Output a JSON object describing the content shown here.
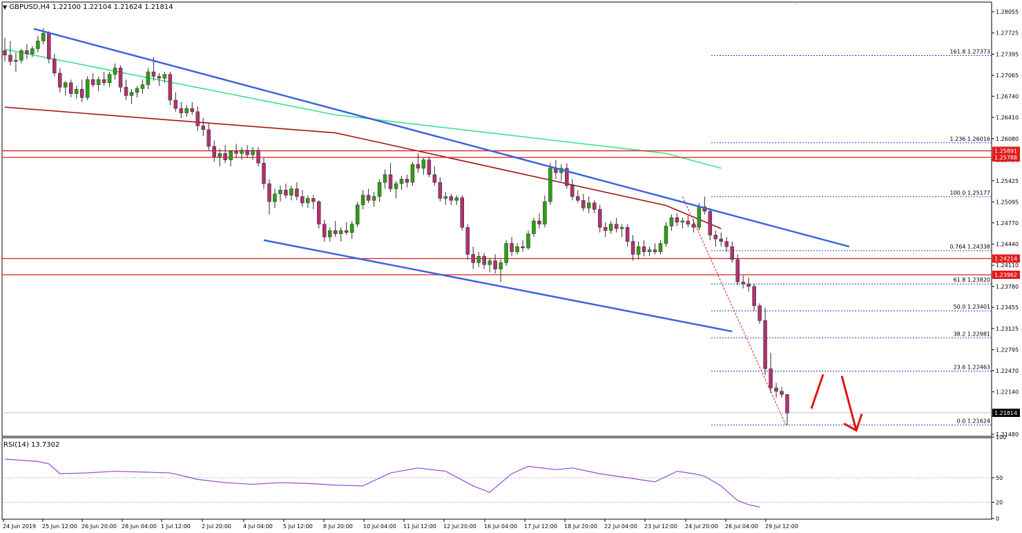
{
  "header": {
    "symbol": "GBPUSD,H4",
    "ohlc": "1.22100 1.22104 1.21624 1.21814"
  },
  "rsi": {
    "label": "RSI(14) 13.7302",
    "levels": [
      "100",
      "50",
      "20",
      "0"
    ]
  },
  "colors": {
    "bull": "#2f9e13",
    "bear": "#b0326f",
    "wick": "#2c2c2c",
    "ma_red": "#a31616",
    "ma_green": "#35e58e",
    "trendline": "#3c64dd",
    "hline": "#e21b1b",
    "fib": "#2244cc",
    "rsi": "#9646d8",
    "arrow": "#e01414",
    "label_box": "#e21b1b"
  },
  "chart_data": [
    {
      "type": "candlestick",
      "title": "GBPUSD,H4",
      "ylim": [
        1.2142,
        1.2816
      ],
      "y_ticks": [
        "1.28055",
        "1.27725",
        "1.27395",
        "1.27065",
        "1.26740",
        "1.26410",
        "1.26080",
        "1.25750",
        "1.25425",
        "1.25095",
        "1.24770",
        "1.24440",
        "1.24110",
        "1.23780",
        "1.23455",
        "1.23125",
        "1.22795",
        "1.22470",
        "1.22140",
        "1.21480"
      ],
      "x_ticks": [
        "24 Jun 2019",
        "25 Jun 12:00",
        "26 Jun 20:00",
        "28 Jun 04:00",
        "1 Jul 12:00",
        "2 Jul 20:00",
        "4 Jul 04:00",
        "5 Jul 12:00",
        "8 Jul 20:00",
        "10 Jul 04:00",
        "11 Jul 12:00",
        "12 Jul 20:00",
        "16 Jul 04:00",
        "17 Jul 12:00",
        "18 Jul 20:00",
        "22 Jul 04:00",
        "23 Jul 12:00",
        "24 Jul 20:00",
        "26 Jul 04:00",
        "29 Jul 12:00"
      ],
      "candles": [
        [
          1.2745,
          1.2765,
          1.2728,
          1.2738
        ],
        [
          1.2738,
          1.276,
          1.2722,
          1.2728
        ],
        [
          1.2728,
          1.2742,
          1.2712,
          1.273
        ],
        [
          1.273,
          1.2748,
          1.2725,
          1.2745
        ],
        [
          1.2745,
          1.2755,
          1.2732,
          1.274
        ],
        [
          1.274,
          1.2752,
          1.2735,
          1.2748
        ],
        [
          1.2748,
          1.2768,
          1.2742,
          1.276
        ],
        [
          1.276,
          1.278,
          1.2755,
          1.2772
        ],
        [
          1.2772,
          1.2775,
          1.2725,
          1.2732
        ],
        [
          1.2732,
          1.274,
          1.2705,
          1.271
        ],
        [
          1.271,
          1.2718,
          1.268,
          1.2688
        ],
        [
          1.2688,
          1.2698,
          1.2675,
          1.2695
        ],
        [
          1.2695,
          1.27,
          1.2672,
          1.2678
        ],
        [
          1.2678,
          1.269,
          1.267,
          1.2685
        ],
        [
          1.2685,
          1.27,
          1.2665,
          1.2672
        ],
        [
          1.2672,
          1.2705,
          1.2668,
          1.27
        ],
        [
          1.27,
          1.271,
          1.2688,
          1.2692
        ],
        [
          1.2692,
          1.2705,
          1.2682,
          1.27
        ],
        [
          1.27,
          1.2712,
          1.269,
          1.2695
        ],
        [
          1.2695,
          1.2712,
          1.2688,
          1.2708
        ],
        [
          1.2708,
          1.2725,
          1.27,
          1.2718
        ],
        [
          1.2718,
          1.2722,
          1.268,
          1.2688
        ],
        [
          1.2688,
          1.27,
          1.2668,
          1.2675
        ],
        [
          1.2675,
          1.2685,
          1.2662,
          1.268
        ],
        [
          1.268,
          1.269,
          1.2672,
          1.2686
        ],
        [
          1.2686,
          1.27,
          1.2678,
          1.2692
        ],
        [
          1.2692,
          1.2718,
          1.2685,
          1.2712
        ],
        [
          1.2712,
          1.2735,
          1.2698,
          1.2705
        ],
        [
          1.2705,
          1.271,
          1.269,
          1.2702
        ],
        [
          1.2702,
          1.2712,
          1.2695,
          1.2708
        ],
        [
          1.2708,
          1.2712,
          1.266,
          1.2668
        ],
        [
          1.2668,
          1.268,
          1.265,
          1.2655
        ],
        [
          1.2655,
          1.2665,
          1.264,
          1.2648
        ],
        [
          1.2648,
          1.266,
          1.2642,
          1.2655
        ],
        [
          1.2655,
          1.2665,
          1.2645,
          1.265
        ],
        [
          1.265,
          1.2658,
          1.262,
          1.2628
        ],
        [
          1.2628,
          1.264,
          1.2612,
          1.2622
        ],
        [
          1.2622,
          1.2632,
          1.259,
          1.2596
        ],
        [
          1.2596,
          1.2605,
          1.2572,
          1.258
        ],
        [
          1.258,
          1.2592,
          1.2565,
          1.2585
        ],
        [
          1.2585,
          1.2598,
          1.257,
          1.2575
        ],
        [
          1.2575,
          1.259,
          1.2565,
          1.2588
        ],
        [
          1.2588,
          1.26,
          1.2578,
          1.2585
        ],
        [
          1.2585,
          1.2595,
          1.2575,
          1.259
        ],
        [
          1.259,
          1.2598,
          1.2578,
          1.2583
        ],
        [
          1.2583,
          1.2595,
          1.2575,
          1.259
        ],
        [
          1.259,
          1.2595,
          1.2565,
          1.257
        ],
        [
          1.257,
          1.2578,
          1.253,
          1.2538
        ],
        [
          1.2538,
          1.2545,
          1.249,
          1.251
        ],
        [
          1.251,
          1.253,
          1.25,
          1.2522
        ],
        [
          1.2522,
          1.2535,
          1.251,
          1.2528
        ],
        [
          1.2528,
          1.2538,
          1.2515,
          1.252
        ],
        [
          1.252,
          1.2535,
          1.2512,
          1.253
        ],
        [
          1.253,
          1.254,
          1.2512,
          1.2518
        ],
        [
          1.2518,
          1.2528,
          1.2502,
          1.2508
        ],
        [
          1.2508,
          1.252,
          1.25,
          1.2515
        ],
        [
          1.2515,
          1.252,
          1.2498,
          1.251
        ],
        [
          1.251,
          1.2512,
          1.2468,
          1.2475
        ],
        [
          1.2475,
          1.2482,
          1.2448,
          1.2455
        ],
        [
          1.2455,
          1.247,
          1.2448,
          1.2465
        ],
        [
          1.2465,
          1.248,
          1.2455,
          1.246
        ],
        [
          1.246,
          1.247,
          1.2448,
          1.2465
        ],
        [
          1.2465,
          1.2478,
          1.2458,
          1.2462
        ],
        [
          1.2462,
          1.248,
          1.2452,
          1.2475
        ],
        [
          1.2475,
          1.251,
          1.247,
          1.2505
        ],
        [
          1.2505,
          1.2528,
          1.2498,
          1.252
        ],
        [
          1.252,
          1.253,
          1.2508,
          1.2512
        ],
        [
          1.2512,
          1.2525,
          1.2502,
          1.2518
        ],
        [
          1.2518,
          1.2545,
          1.251,
          1.254
        ],
        [
          1.254,
          1.256,
          1.253,
          1.2552
        ],
        [
          1.2552,
          1.257,
          1.2525,
          1.253
        ],
        [
          1.253,
          1.2542,
          1.2515,
          1.2538
        ],
        [
          1.2538,
          1.255,
          1.2528,
          1.2545
        ],
        [
          1.2545,
          1.2552,
          1.2532,
          1.254
        ],
        [
          1.254,
          1.2572,
          1.2535,
          1.2568
        ],
        [
          1.2568,
          1.2585,
          1.2555,
          1.2562
        ],
        [
          1.2562,
          1.2578,
          1.2552,
          1.2575
        ],
        [
          1.2575,
          1.258,
          1.2548,
          1.2552
        ],
        [
          1.2552,
          1.2565,
          1.2535,
          1.254
        ],
        [
          1.254,
          1.2548,
          1.251,
          1.2515
        ],
        [
          1.2515,
          1.2525,
          1.2505,
          1.2518
        ],
        [
          1.2518,
          1.2522,
          1.2505,
          1.2512
        ],
        [
          1.2512,
          1.252,
          1.2505,
          1.2516
        ],
        [
          1.2516,
          1.252,
          1.2465,
          1.247
        ],
        [
          1.247,
          1.2475,
          1.242,
          1.2428
        ],
        [
          1.2428,
          1.244,
          1.2405,
          1.2415
        ],
        [
          1.2415,
          1.2432,
          1.2408,
          1.2425
        ],
        [
          1.2425,
          1.243,
          1.2405,
          1.2412
        ],
        [
          1.2412,
          1.2422,
          1.24,
          1.2418
        ],
        [
          1.2418,
          1.2428,
          1.2398,
          1.2405
        ],
        [
          1.2405,
          1.242,
          1.2385,
          1.2415
        ],
        [
          1.2415,
          1.245,
          1.241,
          1.2445
        ],
        [
          1.2445,
          1.2455,
          1.2425,
          1.2432
        ],
        [
          1.2432,
          1.2445,
          1.2428,
          1.244
        ],
        [
          1.244,
          1.245,
          1.2432,
          1.2438
        ],
        [
          1.2438,
          1.2465,
          1.2435,
          1.246
        ],
        [
          1.246,
          1.2485,
          1.2455,
          1.248
        ],
        [
          1.248,
          1.2492,
          1.2468,
          1.2475
        ],
        [
          1.2475,
          1.252,
          1.247,
          1.251
        ],
        [
          1.251,
          1.257,
          1.2505,
          1.2562
        ],
        [
          1.2562,
          1.2575,
          1.2545,
          1.2555
        ],
        [
          1.2555,
          1.2568,
          1.2542,
          1.2562
        ],
        [
          1.2562,
          1.257,
          1.253,
          1.2535
        ],
        [
          1.2535,
          1.2545,
          1.2512,
          1.2518
        ],
        [
          1.2518,
          1.2528,
          1.2508,
          1.2512
        ],
        [
          1.2512,
          1.2522,
          1.2495,
          1.25
        ],
        [
          1.25,
          1.2518,
          1.2492,
          1.2508
        ],
        [
          1.2508,
          1.2512,
          1.2492,
          1.2498
        ],
        [
          1.2498,
          1.2505,
          1.2462,
          1.247
        ],
        [
          1.247,
          1.2478,
          1.2455,
          1.2465
        ],
        [
          1.2465,
          1.248,
          1.246,
          1.2475
        ],
        [
          1.2475,
          1.2485,
          1.2462,
          1.2468
        ],
        [
          1.2468,
          1.2475,
          1.2455,
          1.247
        ],
        [
          1.247,
          1.2475,
          1.244,
          1.2448
        ],
        [
          1.2448,
          1.2458,
          1.2418,
          1.2428
        ],
        [
          1.2428,
          1.2448,
          1.242,
          1.244
        ],
        [
          1.244,
          1.245,
          1.2425,
          1.2432
        ],
        [
          1.2432,
          1.244,
          1.2425,
          1.2435
        ],
        [
          1.2435,
          1.2445,
          1.2428,
          1.2432
        ],
        [
          1.2432,
          1.245,
          1.2428,
          1.2445
        ],
        [
          1.2445,
          1.2478,
          1.244,
          1.2472
        ],
        [
          1.2472,
          1.249,
          1.2465,
          1.2485
        ],
        [
          1.2485,
          1.2492,
          1.2472,
          1.2478
        ],
        [
          1.2478,
          1.2485,
          1.2468,
          1.248
        ],
        [
          1.248,
          1.2488,
          1.247,
          1.2475
        ],
        [
          1.2475,
          1.2482,
          1.2462,
          1.247
        ],
        [
          1.247,
          1.2508,
          1.2465,
          1.2502
        ],
        [
          1.2502,
          1.2518,
          1.249,
          1.2495
        ],
        [
          1.2495,
          1.25,
          1.245,
          1.2458
        ],
        [
          1.2458,
          1.2465,
          1.244,
          1.2452
        ],
        [
          1.2452,
          1.2462,
          1.244,
          1.2448
        ],
        [
          1.2448,
          1.2455,
          1.2432,
          1.244
        ],
        [
          1.244,
          1.2448,
          1.2415,
          1.242
        ],
        [
          1.242,
          1.2428,
          1.238,
          1.2385
        ],
        [
          1.2385,
          1.2395,
          1.2375,
          1.2382
        ],
        [
          1.2382,
          1.2392,
          1.237,
          1.2378
        ],
        [
          1.2378,
          1.2382,
          1.234,
          1.2348
        ],
        [
          1.2348,
          1.2352,
          1.232,
          1.2325
        ],
        [
          1.2325,
          1.2345,
          1.224,
          1.225
        ],
        [
          1.225,
          1.2275,
          1.2212,
          1.222
        ],
        [
          1.222,
          1.2228,
          1.2205,
          1.2215
        ],
        [
          1.2215,
          1.2222,
          1.2205,
          1.221
        ],
        [
          1.221,
          1.221,
          1.2162,
          1.2181
        ]
      ],
      "moving_averages": [
        {
          "x": [
            0,
            60,
            120,
            130
          ],
          "values": [
            1.2657,
            1.2617,
            1.2504,
            1.2468
          ]
        },
        {
          "x": [
            0,
            60,
            120,
            130
          ],
          "values": [
            1.2747,
            1.2645,
            1.2585,
            1.2562
          ]
        }
      ],
      "horizontal_lines": [
        {
          "value": 1.25891,
          "label": "1.25891"
        },
        {
          "value": 1.25788,
          "label": "1.25788"
        },
        {
          "value": 1.24214,
          "label": "1.24214"
        },
        {
          "value": 1.23962,
          "label": "1.23962"
        }
      ],
      "current_price": {
        "value": 1.21814,
        "label": "1.21814"
      },
      "trendlines": [
        {
          "x": [
            4,
            146
          ],
          "values": [
            1.2779,
            1.244
          ]
        },
        {
          "x": [
            47,
            132
          ],
          "values": [
            1.245,
            1.2308
          ]
        }
      ],
      "fibonacci": {
        "x_start": 123,
        "x_end": 167,
        "price_high": 1.25177,
        "price_low": 1.21624,
        "levels": [
          {
            "value": 1.27373,
            "label": "161.8 1.27373"
          },
          {
            "value": 1.26016,
            "label": "1.236 1.26016"
          },
          {
            "value": 1.25177,
            "label": "100.0 1.25177"
          },
          {
            "value": 1.24338,
            "label": "0.764 1.24338"
          },
          {
            "value": 1.2382,
            "label": "61.8 1.23820"
          },
          {
            "value": 1.23401,
            "label": "50.0 1.23401"
          },
          {
            "value": 1.22981,
            "label": "38.2 1.22981"
          },
          {
            "value": 1.22463,
            "label": "23.6 1.22463"
          },
          {
            "value": 1.21624,
            "label": "0.0 1.21624"
          }
        ]
      },
      "projection_arrow": {
        "x": [
          134,
          137,
          140
        ],
        "values": [
          1.2188,
          1.2241,
          1.2154
        ]
      }
    },
    {
      "type": "line",
      "title": "RSI(14) 13.7302",
      "ylim": [
        0,
        100
      ],
      "y_ticks": [
        "100",
        "50",
        "20",
        "0"
      ],
      "x": [
        0,
        6,
        8,
        10,
        15,
        20,
        25,
        30,
        35,
        40,
        45,
        50,
        55,
        60,
        65,
        70,
        75,
        80,
        85,
        88,
        92,
        95,
        100,
        103,
        108,
        113,
        118,
        122,
        125,
        127,
        130,
        133,
        135,
        137
      ],
      "values": [
        73,
        70,
        67,
        55,
        56,
        58,
        57,
        56,
        48,
        44,
        42,
        44,
        43,
        41,
        40,
        56,
        62,
        58,
        40,
        32,
        55,
        64,
        60,
        62,
        55,
        50,
        45,
        58,
        55,
        52,
        40,
        22,
        17,
        14
      ]
    }
  ]
}
